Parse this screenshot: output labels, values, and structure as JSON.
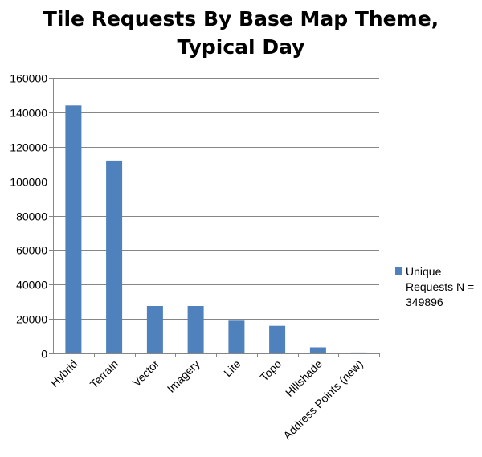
{
  "chart_data": {
    "type": "bar",
    "title_lines": [
      "Tile Requests By Base Map Theme,",
      "Typical Day"
    ],
    "categories": [
      "Hybrid",
      "Terrain",
      "Vector",
      "Imagery",
      "Lite",
      "Topo",
      "Hillshade",
      "Address Points (new)"
    ],
    "series": [
      {
        "name_lines": [
          "Unique",
          "Requests N =",
          "349896"
        ],
        "color": "#4f81bd",
        "values": [
          144000,
          112000,
          27500,
          27500,
          19000,
          16000,
          3500,
          500
        ]
      }
    ],
    "ylim": [
      0,
      160000
    ],
    "yticks": [
      "0",
      "20000",
      "40000",
      "60000",
      "80000",
      "100000",
      "120000",
      "140000",
      "160000"
    ],
    "grid": true,
    "legend_position": "right"
  }
}
